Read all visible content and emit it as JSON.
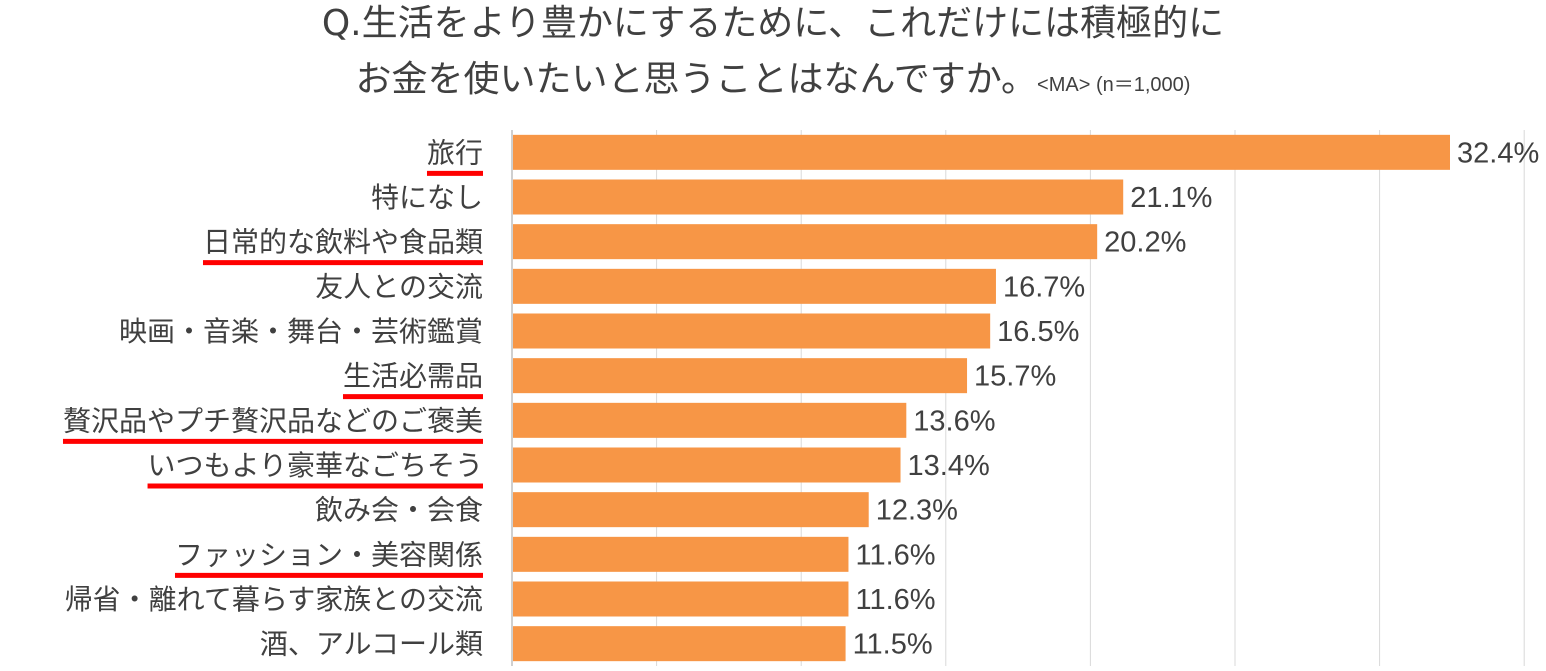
{
  "title": {
    "line1": "Q.生活をより豊かにするために、これだけには積極的に",
    "line2_main": "お金を使いたいと思うことはなんですか。",
    "line2_note": "<MA> (n＝1,000)"
  },
  "colors": {
    "bar": "#F79646",
    "underline": "#FF0000",
    "grid": "#D9D9D9",
    "axis": "#BFBFBF",
    "text": "#404040"
  },
  "chart_data": {
    "type": "bar",
    "orientation": "horizontal",
    "categories": [
      "旅行",
      "特になし",
      "日常的な飲料や食品類",
      "友人との交流",
      "映画・音楽・舞台・芸術鑑賞",
      "生活必需品",
      "贅沢品やプチ贅沢品などのご褒美",
      "いつもより豪華なごちそう",
      "飲み会・会食",
      "ファッション・美容関係",
      "帰省・離れて暮らす家族との交流",
      "酒、アルコール類"
    ],
    "values": [
      32.4,
      21.1,
      20.2,
      16.7,
      16.5,
      15.7,
      13.6,
      13.4,
      12.3,
      11.6,
      11.6,
      11.5
    ],
    "value_labels": [
      "32.4%",
      "21.1%",
      "20.2%",
      "16.7%",
      "16.5%",
      "15.7%",
      "13.6%",
      "13.4%",
      "12.3%",
      "11.6%",
      "11.6%",
      "11.5%"
    ],
    "highlighted": [
      true,
      false,
      true,
      false,
      false,
      true,
      true,
      true,
      false,
      true,
      false,
      false
    ],
    "xlim": [
      0,
      35
    ],
    "grid": true,
    "grid_step": 5
  }
}
